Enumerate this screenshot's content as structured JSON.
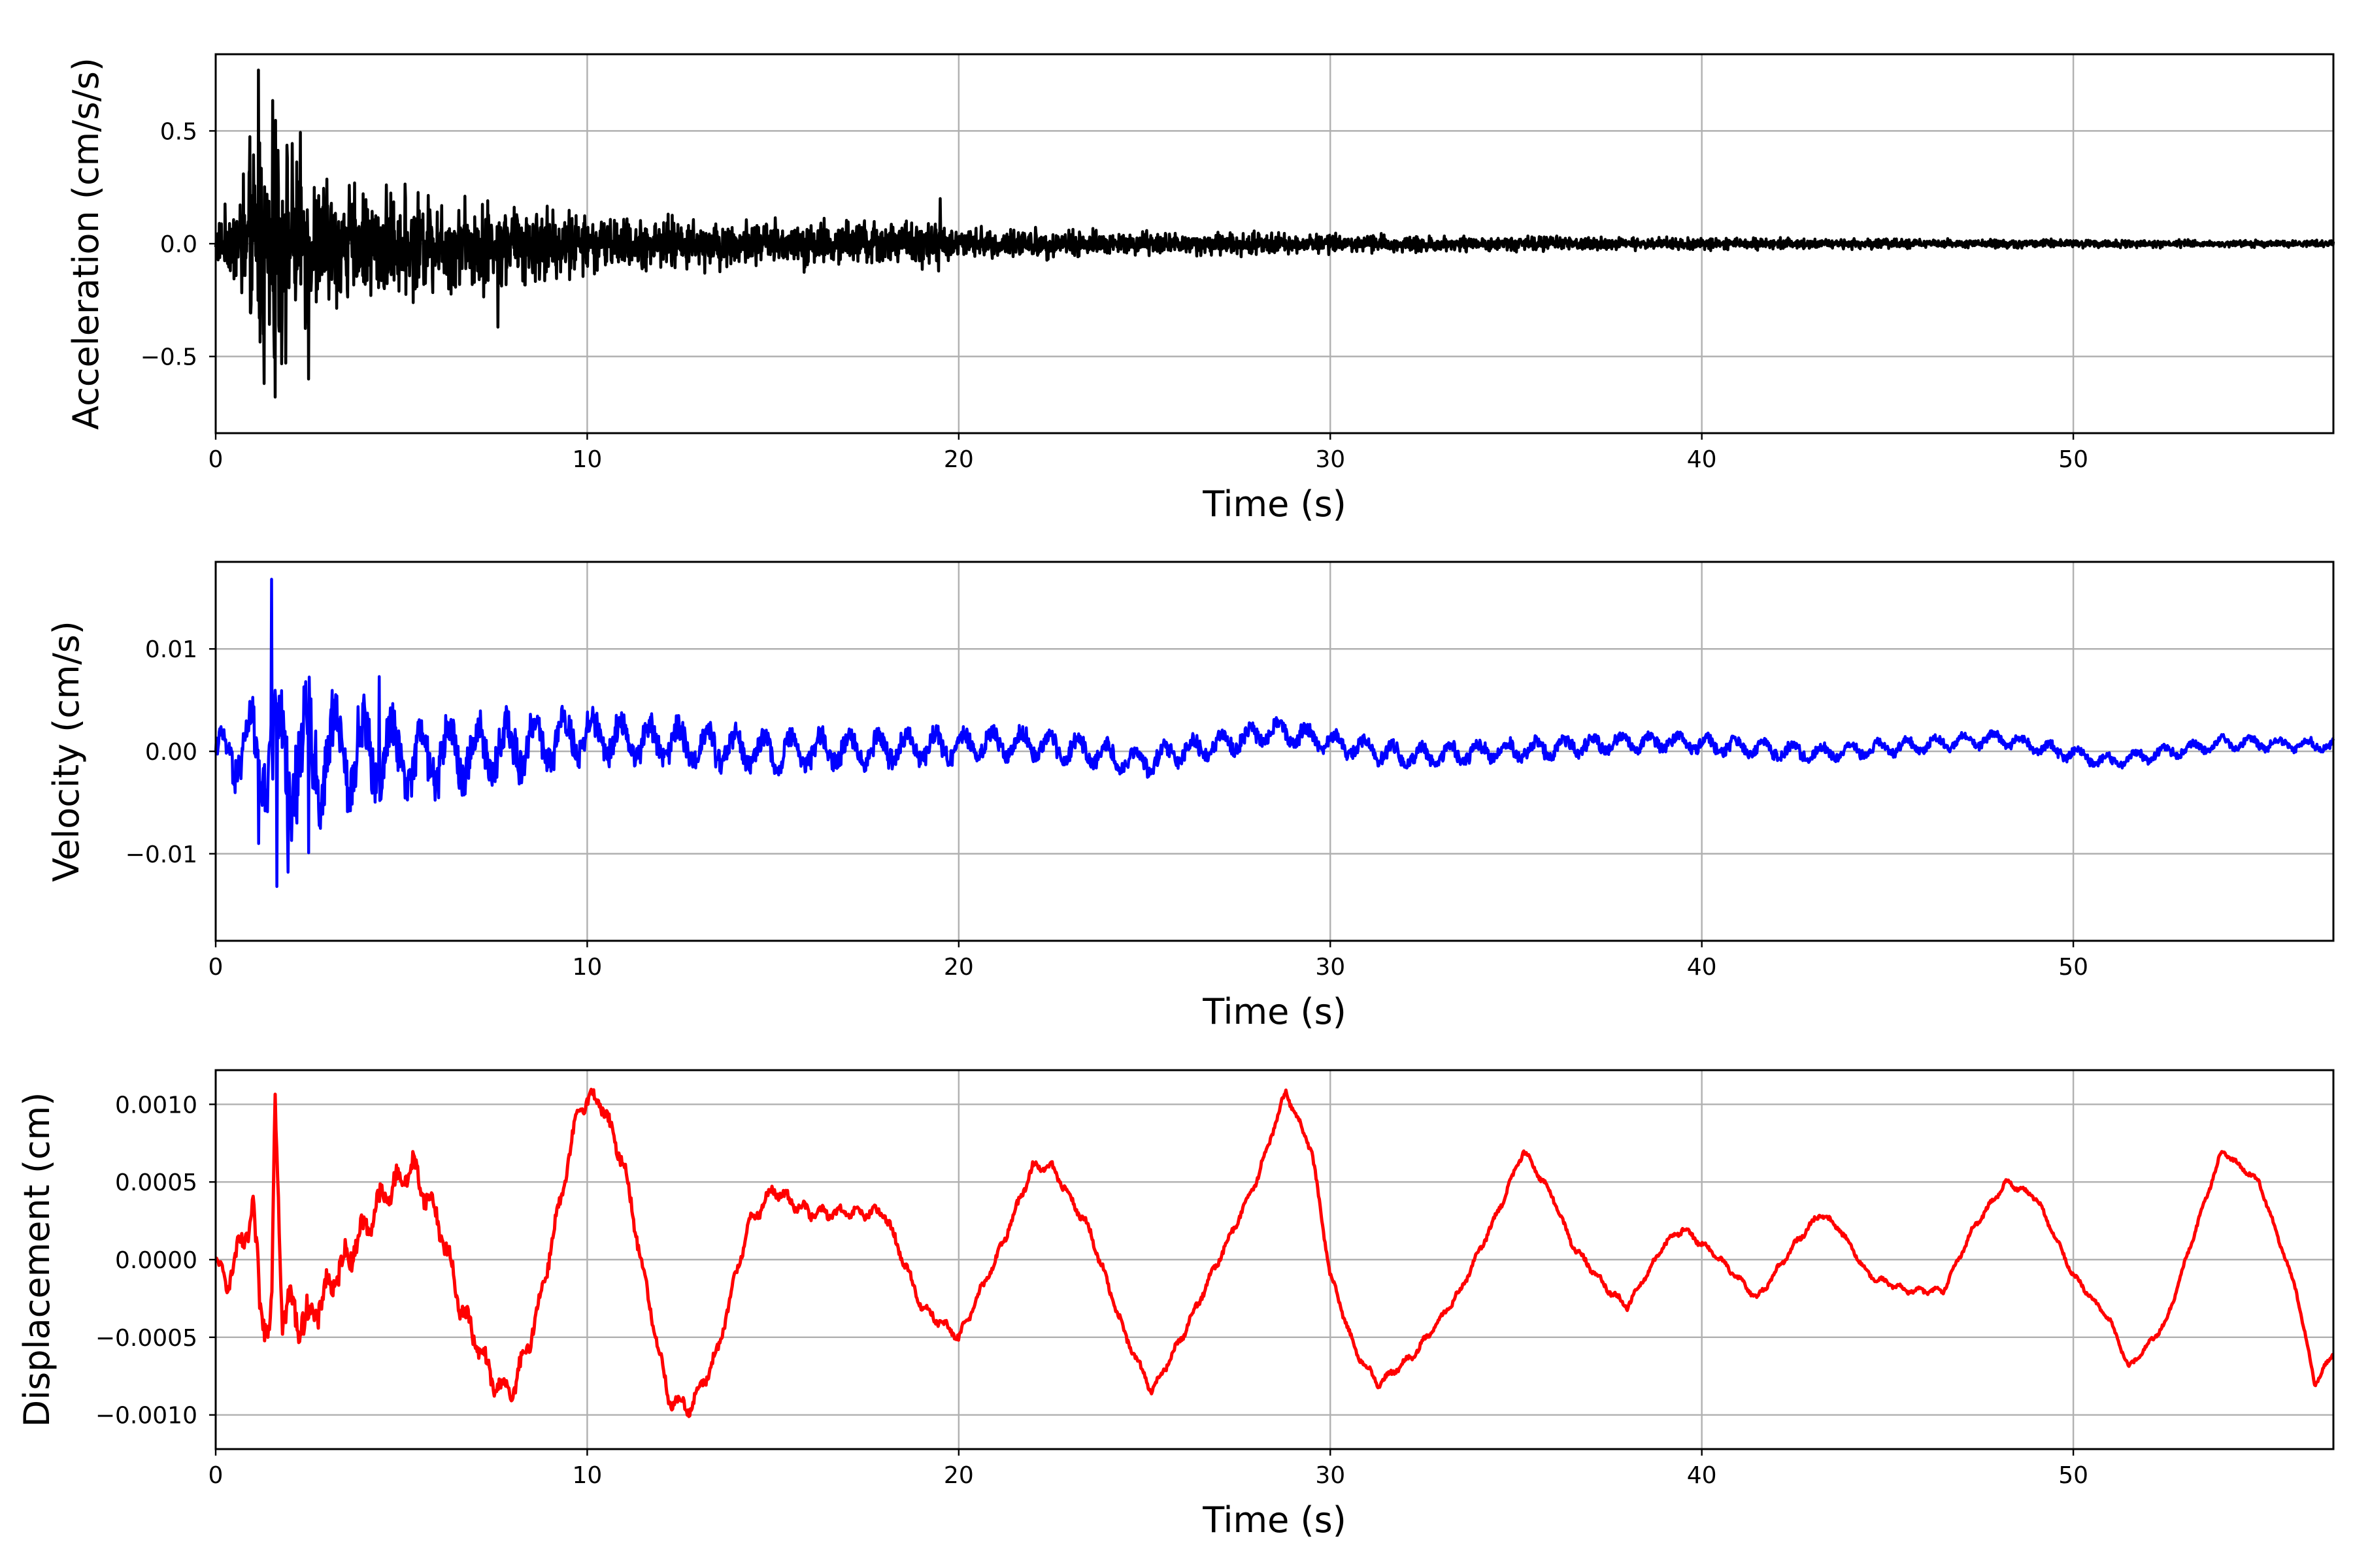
{
  "chart_data": [
    {
      "type": "line",
      "name": "acceleration",
      "title": "",
      "xlabel": "Time (s)",
      "ylabel": "Acceleration (cm/s/s)",
      "xlim": [
        0,
        57
      ],
      "ylim": [
        -0.84,
        0.84
      ],
      "xticks": [
        0,
        10,
        20,
        30,
        40,
        50
      ],
      "xtick_labels": [
        "0",
        "10",
        "20",
        "30",
        "40",
        "50"
      ],
      "yticks": [
        0.5,
        0.0,
        -0.5
      ],
      "ytick_labels": [
        "0.5",
        "0.0",
        "−0.5"
      ],
      "grid": true,
      "color": "#000000",
      "envelope": [
        {
          "t": 0.0,
          "a": 0.12
        },
        {
          "t": 0.5,
          "a": 0.25
        },
        {
          "t": 1.0,
          "a": 0.55
        },
        {
          "t": 1.2,
          "a": 0.77
        },
        {
          "t": 1.5,
          "a": 0.68
        },
        {
          "t": 2.0,
          "a": 0.55
        },
        {
          "t": 2.5,
          "a": 0.45
        },
        {
          "t": 3.0,
          "a": 0.35
        },
        {
          "t": 5.0,
          "a": 0.28
        },
        {
          "t": 7.0,
          "a": 0.25
        },
        {
          "t": 9.0,
          "a": 0.22
        },
        {
          "t": 10.0,
          "a": 0.15
        },
        {
          "t": 15.0,
          "a": 0.13
        },
        {
          "t": 19.5,
          "a": 0.13
        },
        {
          "t": 20.0,
          "a": 0.09
        },
        {
          "t": 25.0,
          "a": 0.07
        },
        {
          "t": 30.0,
          "a": 0.05
        },
        {
          "t": 38.0,
          "a": 0.035
        },
        {
          "t": 45.0,
          "a": 0.025
        },
        {
          "t": 57.0,
          "a": 0.018
        }
      ],
      "peaks": [
        {
          "t": 1.15,
          "y": 0.77
        },
        {
          "t": 1.3,
          "y": -0.62
        },
        {
          "t": 1.6,
          "y": -0.68
        },
        {
          "t": 2.5,
          "y": -0.6
        },
        {
          "t": 7.6,
          "y": -0.37
        },
        {
          "t": 19.5,
          "y": 0.2
        }
      ]
    },
    {
      "type": "line",
      "name": "velocity",
      "title": "",
      "xlabel": "Time (s)",
      "ylabel": "Velocity (cm/s)",
      "xlim": [
        0,
        57
      ],
      "ylim": [
        -0.0185,
        0.0185
      ],
      "xticks": [
        0,
        10,
        20,
        30,
        40,
        50
      ],
      "xtick_labels": [
        "0",
        "10",
        "20",
        "30",
        "40",
        "50"
      ],
      "yticks": [
        0.01,
        0.0,
        -0.01
      ],
      "ytick_labels": [
        "0.01",
        "0.00",
        "−0.01"
      ],
      "grid": true,
      "color": "#0000ff",
      "envelope": [
        {
          "t": 0.0,
          "a": 0.002
        },
        {
          "t": 1.0,
          "a": 0.006
        },
        {
          "t": 2.0,
          "a": 0.009
        },
        {
          "t": 3.0,
          "a": 0.007
        },
        {
          "t": 5.0,
          "a": 0.005
        },
        {
          "t": 8.0,
          "a": 0.004
        },
        {
          "t": 10.0,
          "a": 0.003
        },
        {
          "t": 15.0,
          "a": 0.0025
        },
        {
          "t": 20.0,
          "a": 0.002
        },
        {
          "t": 30.0,
          "a": 0.0015
        },
        {
          "t": 45.0,
          "a": 0.001
        },
        {
          "t": 57.0,
          "a": 0.0008
        }
      ],
      "drift": [
        {
          "t": 0.0,
          "y": 0.0
        },
        {
          "t": 6.0,
          "y": -0.0005
        },
        {
          "t": 10.0,
          "y": 0.0015
        },
        {
          "t": 15.0,
          "y": 0.0
        },
        {
          "t": 22.0,
          "y": 0.0008
        },
        {
          "t": 25.0,
          "y": -0.001
        },
        {
          "t": 28.5,
          "y": 0.002
        },
        {
          "t": 32.0,
          "y": -0.0005
        },
        {
          "t": 39.0,
          "y": 0.001
        },
        {
          "t": 43.0,
          "y": -0.0002
        },
        {
          "t": 48.0,
          "y": 0.0012
        },
        {
          "t": 51.0,
          "y": -0.001
        },
        {
          "t": 54.0,
          "y": 0.0008
        },
        {
          "t": 57.0,
          "y": 0.0006
        }
      ],
      "peaks": [
        {
          "t": 1.5,
          "y": 0.0168
        },
        {
          "t": 1.15,
          "y": -0.009
        },
        {
          "t": 1.65,
          "y": -0.0132
        },
        {
          "t": 1.95,
          "y": -0.0118
        },
        {
          "t": 2.5,
          "y": -0.0099
        },
        {
          "t": 4.4,
          "y": 0.0073
        }
      ]
    },
    {
      "type": "line",
      "name": "displacement",
      "title": "",
      "xlabel": "Time (s)",
      "ylabel": "Displacement (cm)",
      "xlim": [
        0,
        57
      ],
      "ylim": [
        -0.00122,
        0.00122
      ],
      "xticks": [
        0,
        10,
        20,
        30,
        40,
        50
      ],
      "xtick_labels": [
        "0",
        "10",
        "20",
        "30",
        "40",
        "50"
      ],
      "yticks": [
        0.001,
        0.0005,
        0.0,
        -0.0005,
        -0.001
      ],
      "ytick_labels": [
        "0.0010",
        "0.0005",
        "0.0000",
        "−0.0005",
        "−0.0010"
      ],
      "grid": true,
      "color": "#ff0000",
      "points": [
        [
          0.0,
          0.0
        ],
        [
          0.3,
          -0.00015
        ],
        [
          0.7,
          0.0001
        ],
        [
          1.0,
          0.0003
        ],
        [
          1.2,
          -0.0003
        ],
        [
          1.5,
          -0.0004
        ],
        [
          1.6,
          0.001
        ],
        [
          1.8,
          -0.0003
        ],
        [
          2.5,
          -0.0004
        ],
        [
          3.5,
          0.0
        ],
        [
          4.5,
          0.0004
        ],
        [
          5.3,
          0.0006
        ],
        [
          6.0,
          0.00025
        ],
        [
          6.6,
          -0.0003
        ],
        [
          7.5,
          -0.0008
        ],
        [
          8.0,
          -0.00085
        ],
        [
          8.6,
          -0.0004
        ],
        [
          9.3,
          0.0004
        ],
        [
          9.8,
          0.001
        ],
        [
          10.3,
          0.00105
        ],
        [
          11.0,
          0.0006
        ],
        [
          11.6,
          -0.0002
        ],
        [
          12.2,
          -0.0009
        ],
        [
          12.8,
          -0.00095
        ],
        [
          13.5,
          -0.0006
        ],
        [
          14.3,
          0.0002
        ],
        [
          15.0,
          0.00045
        ],
        [
          16.0,
          0.0003
        ],
        [
          17.0,
          0.0003
        ],
        [
          18.0,
          0.0003
        ],
        [
          19.0,
          -0.0003
        ],
        [
          20.0,
          -0.0005
        ],
        [
          21.0,
          0.0
        ],
        [
          22.0,
          0.0006
        ],
        [
          22.5,
          0.0006
        ],
        [
          23.5,
          0.0002
        ],
        [
          24.5,
          -0.0005
        ],
        [
          25.2,
          -0.00085
        ],
        [
          26.0,
          -0.0005
        ],
        [
          27.0,
          0.0
        ],
        [
          28.0,
          0.0005
        ],
        [
          28.8,
          0.00108
        ],
        [
          29.5,
          0.0007
        ],
        [
          30.0,
          -0.0001
        ],
        [
          30.7,
          -0.0006
        ],
        [
          31.3,
          -0.0008
        ],
        [
          32.3,
          -0.0006
        ],
        [
          33.5,
          -0.0002
        ],
        [
          34.5,
          0.0003
        ],
        [
          35.2,
          0.0007
        ],
        [
          36.0,
          0.0004
        ],
        [
          36.5,
          0.0001
        ],
        [
          37.5,
          -0.0002
        ],
        [
          38.0,
          -0.0003
        ],
        [
          39.0,
          0.0001
        ],
        [
          39.5,
          0.0002
        ],
        [
          40.5,
          0.0
        ],
        [
          41.5,
          -0.00025
        ],
        [
          42.5,
          0.0001
        ],
        [
          43.2,
          0.0003
        ],
        [
          43.7,
          0.0002
        ],
        [
          44.5,
          -0.0001
        ],
        [
          45.5,
          -0.0002
        ],
        [
          46.5,
          -0.0002
        ],
        [
          47.3,
          0.0002
        ],
        [
          48.2,
          0.0005
        ],
        [
          49.0,
          0.0004
        ],
        [
          50.0,
          -0.0001
        ],
        [
          51.0,
          -0.0004
        ],
        [
          51.5,
          -0.0007
        ],
        [
          52.5,
          -0.0004
        ],
        [
          53.3,
          0.0002
        ],
        [
          54.0,
          0.0007
        ],
        [
          55.0,
          0.0005
        ],
        [
          56.0,
          -0.0002
        ],
        [
          56.5,
          -0.0008
        ],
        [
          57.0,
          -0.0006
        ]
      ],
      "ripple": [
        {
          "t": 0.0,
          "a": 4e-05
        },
        {
          "t": 1.5,
          "a": 0.0002
        },
        {
          "t": 4.0,
          "a": 0.00012
        },
        {
          "t": 10.0,
          "a": 7e-05
        },
        {
          "t": 20.0,
          "a": 4e-05
        },
        {
          "t": 30.0,
          "a": 3e-05
        },
        {
          "t": 57.0,
          "a": 2e-05
        }
      ]
    }
  ]
}
